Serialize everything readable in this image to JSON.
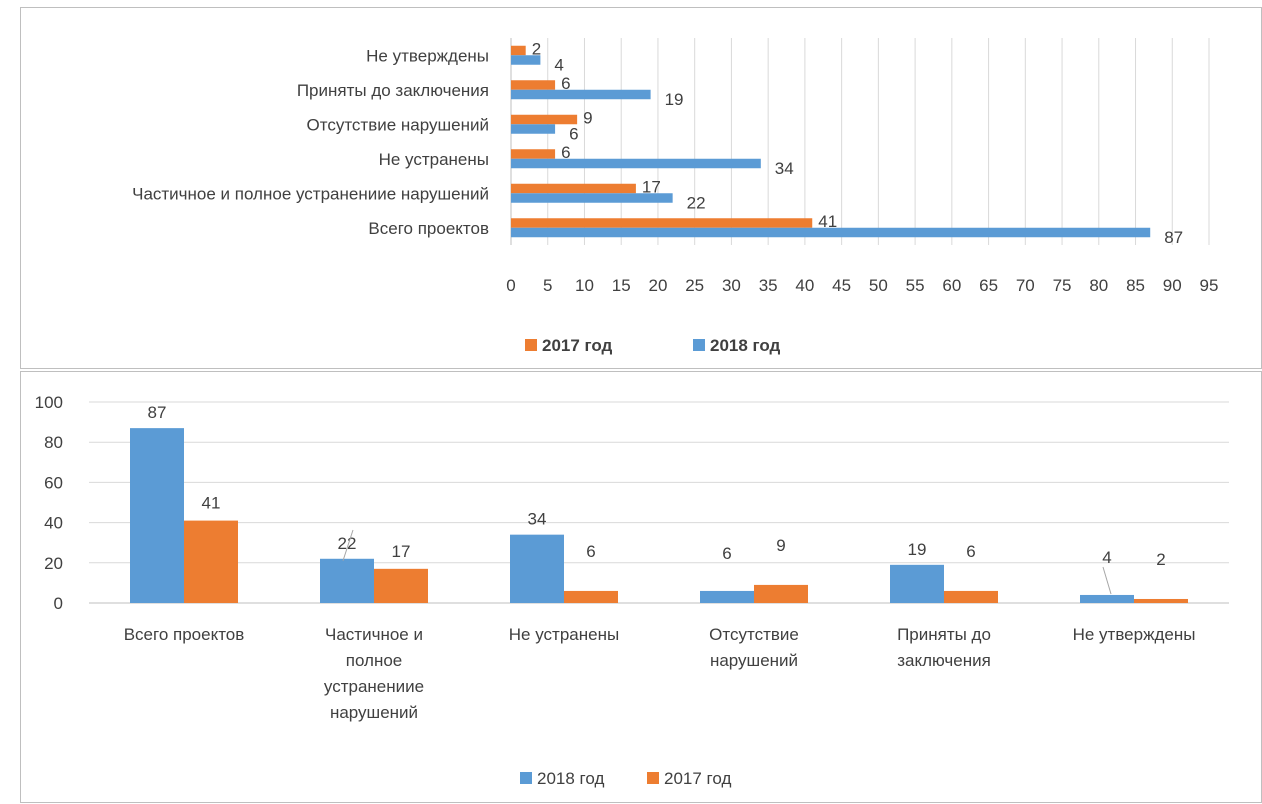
{
  "page_fragment": "",
  "chart_data": [
    {
      "type": "bar",
      "orientation": "horizontal",
      "categories": [
        "Всего проектов",
        "Частичное и полное устранениие нарушений",
        "Не устранены",
        "Отсутствие нарушений",
        "Приняты до заключения",
        "Не утверждены"
      ],
      "series": [
        {
          "name": "2017 год",
          "color": "#ed7d31",
          "values": [
            41,
            17,
            6,
            9,
            6,
            2
          ]
        },
        {
          "name": "2018 год",
          "color": "#5b9bd5",
          "values": [
            87,
            22,
            34,
            6,
            19,
            4
          ]
        }
      ],
      "xlim": [
        0,
        95
      ],
      "xticks": [
        "0",
        "5",
        "10",
        "15",
        "20",
        "25",
        "30",
        "35",
        "40",
        "45",
        "50",
        "55",
        "60",
        "65",
        "70",
        "75",
        "80",
        "85",
        "90",
        "95"
      ],
      "grid": true,
      "legend": "bottom",
      "legend_bold": true
    },
    {
      "type": "bar",
      "orientation": "vertical",
      "categories": [
        "Всего проектов",
        "Частичное и полное устранениие нарушений",
        "Не устранены",
        "Отсутствие нарушений",
        "Приняты до заключения",
        "Не утверждены"
      ],
      "category_lines": [
        [
          "Всего проектов"
        ],
        [
          "Частичное и",
          "полное",
          "устранениие",
          "нарушений"
        ],
        [
          "Не устранены"
        ],
        [
          "Отсутствие",
          "нарушений"
        ],
        [
          "Приняты до",
          "заключения"
        ],
        [
          "Не утверждены"
        ]
      ],
      "series": [
        {
          "name": "2018 год",
          "color": "#5b9bd5",
          "values": [
            87,
            22,
            34,
            6,
            19,
            4
          ]
        },
        {
          "name": "2017 год",
          "color": "#ed7d31",
          "values": [
            41,
            17,
            6,
            9,
            6,
            2
          ]
        }
      ],
      "ylim": [
        0,
        100
      ],
      "yticks": [
        "0",
        "20",
        "40",
        "60",
        "80",
        "100"
      ],
      "grid": true,
      "legend": "bottom"
    }
  ]
}
